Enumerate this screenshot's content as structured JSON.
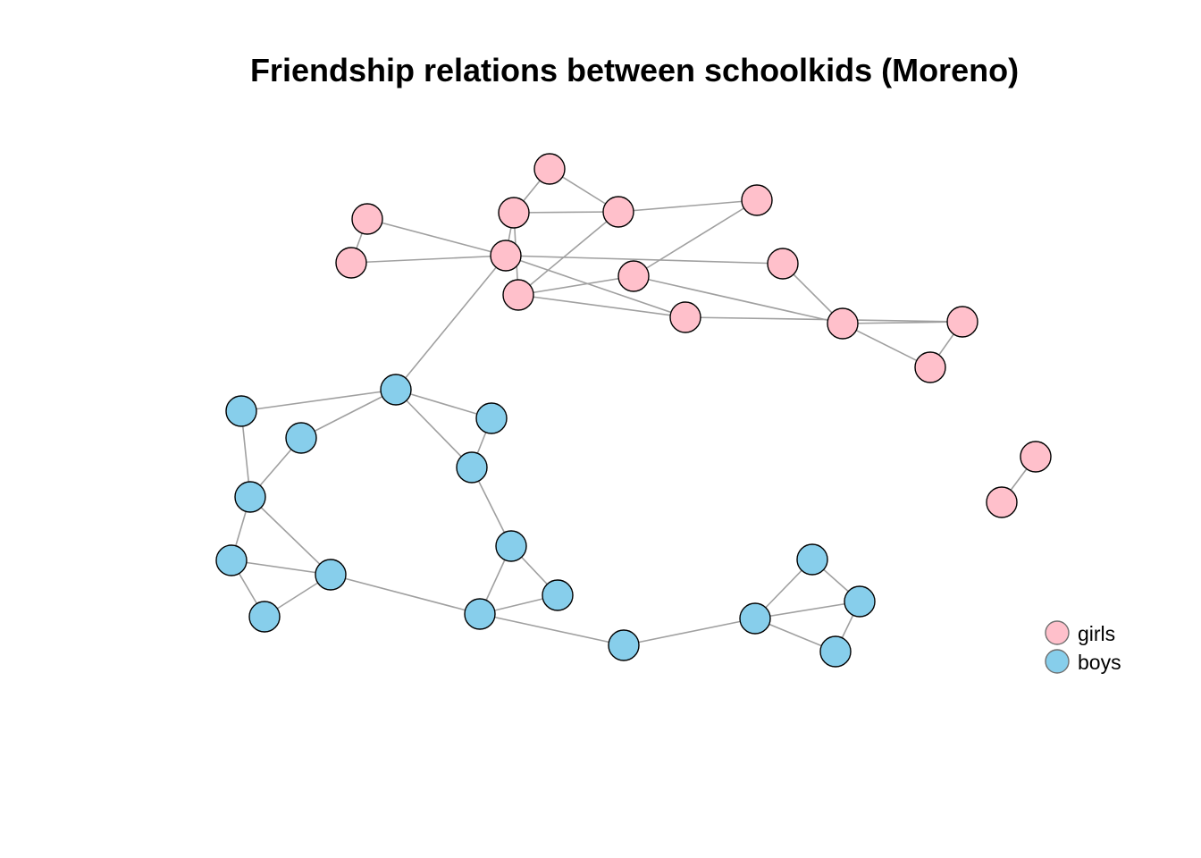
{
  "title": "Friendship relations between schoolkids (Moreno)",
  "colors": {
    "girls": "#FFC0CB",
    "boys": "#87CEEB",
    "edge": "#A0A0A0"
  },
  "legend": [
    {
      "label": "girls",
      "group": "girls"
    },
    {
      "label": "boys",
      "group": "boys"
    }
  ],
  "graph": {
    "nodes": [
      {
        "id": "g1",
        "group": "girls"
      },
      {
        "id": "g2",
        "group": "girls"
      },
      {
        "id": "g3",
        "group": "girls"
      },
      {
        "id": "g4",
        "group": "girls"
      },
      {
        "id": "g5",
        "group": "girls"
      },
      {
        "id": "g6",
        "group": "girls"
      },
      {
        "id": "g7",
        "group": "girls"
      },
      {
        "id": "g8",
        "group": "girls"
      },
      {
        "id": "g9",
        "group": "girls"
      },
      {
        "id": "g10",
        "group": "girls"
      },
      {
        "id": "g11",
        "group": "girls"
      },
      {
        "id": "g12",
        "group": "girls"
      },
      {
        "id": "g13",
        "group": "girls"
      },
      {
        "id": "g14",
        "group": "girls"
      },
      {
        "id": "g15",
        "group": "girls"
      },
      {
        "id": "g16",
        "group": "girls"
      },
      {
        "id": "g17",
        "group": "girls"
      },
      {
        "id": "b1",
        "group": "boys"
      },
      {
        "id": "b2",
        "group": "boys"
      },
      {
        "id": "b3",
        "group": "boys"
      },
      {
        "id": "b4",
        "group": "boys"
      },
      {
        "id": "b5",
        "group": "boys"
      },
      {
        "id": "b6",
        "group": "boys"
      },
      {
        "id": "b7",
        "group": "boys"
      },
      {
        "id": "b8",
        "group": "boys"
      },
      {
        "id": "b9",
        "group": "boys"
      },
      {
        "id": "b10",
        "group": "boys"
      },
      {
        "id": "b11",
        "group": "boys"
      },
      {
        "id": "b12",
        "group": "boys"
      },
      {
        "id": "b13",
        "group": "boys"
      },
      {
        "id": "b14",
        "group": "boys"
      },
      {
        "id": "b15",
        "group": "boys"
      },
      {
        "id": "b16",
        "group": "boys"
      },
      {
        "id": "b17",
        "group": "boys"
      },
      {
        "id": "b18",
        "group": "boys"
      }
    ],
    "edges": [
      [
        "g1",
        "g3"
      ],
      [
        "g1",
        "g4"
      ],
      [
        "g2",
        "g5"
      ],
      [
        "g2",
        "g7"
      ],
      [
        "g3",
        "g4"
      ],
      [
        "g3",
        "g7"
      ],
      [
        "g3",
        "g8"
      ],
      [
        "g4",
        "g6"
      ],
      [
        "g4",
        "g8"
      ],
      [
        "g5",
        "g7"
      ],
      [
        "g6",
        "g9"
      ],
      [
        "g7",
        "g10"
      ],
      [
        "g7",
        "g11"
      ],
      [
        "g7",
        "b1"
      ],
      [
        "g8",
        "g10"
      ],
      [
        "g8",
        "g9"
      ],
      [
        "g9",
        "g12"
      ],
      [
        "g10",
        "g13"
      ],
      [
        "g11",
        "g12"
      ],
      [
        "g12",
        "g13"
      ],
      [
        "g12",
        "g14"
      ],
      [
        "g13",
        "g15"
      ],
      [
        "g14",
        "g15"
      ],
      [
        "g16",
        "g17"
      ],
      [
        "b1",
        "b2"
      ],
      [
        "b1",
        "b3"
      ],
      [
        "b1",
        "b4"
      ],
      [
        "b1",
        "b5"
      ],
      [
        "b2",
        "b6"
      ],
      [
        "b3",
        "b6"
      ],
      [
        "b4",
        "b5"
      ],
      [
        "b5",
        "b9"
      ],
      [
        "b6",
        "b7"
      ],
      [
        "b6",
        "b8"
      ],
      [
        "b7",
        "b8"
      ],
      [
        "b7",
        "b10"
      ],
      [
        "b8",
        "b10"
      ],
      [
        "b8",
        "b12"
      ],
      [
        "b9",
        "b11"
      ],
      [
        "b9",
        "b12"
      ],
      [
        "b11",
        "b12"
      ],
      [
        "b12",
        "b13"
      ],
      [
        "b13",
        "b14"
      ],
      [
        "b14",
        "b15"
      ],
      [
        "b14",
        "b16"
      ],
      [
        "b14",
        "b17"
      ],
      [
        "b15",
        "b16"
      ],
      [
        "b16",
        "b17"
      ]
    ]
  }
}
